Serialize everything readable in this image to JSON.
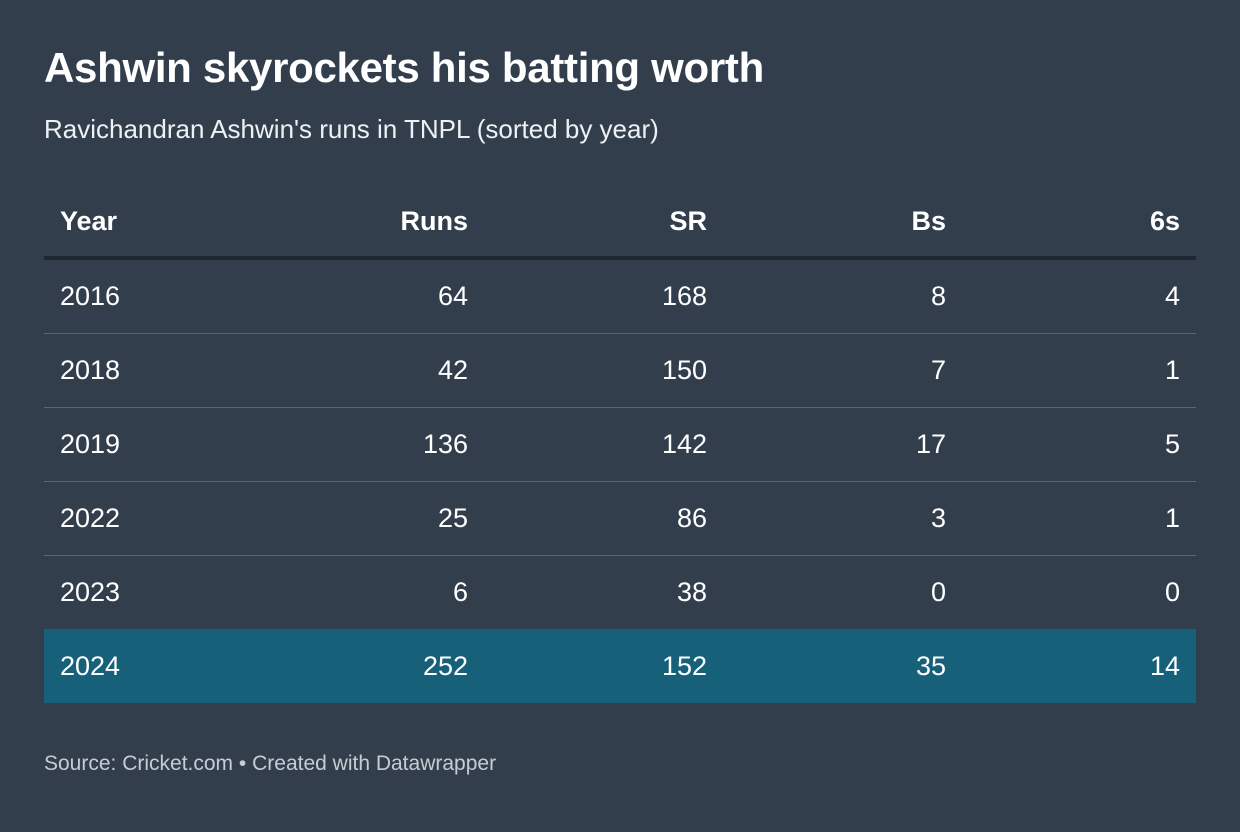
{
  "title": "Ashwin skyrockets his batting worth",
  "subtitle": "Ravichandran Ashwin's runs in TNPL (sorted by year)",
  "footer": {
    "source": "Source: Cricket.com",
    "separator": "•",
    "credit": "Created with Datawrapper"
  },
  "colors": {
    "background": "#333e4d",
    "highlight_row": "#16607a",
    "text": "#ffffff"
  },
  "chart_data": {
    "type": "table",
    "title": "Ashwin skyrockets his batting worth",
    "subtitle": "Ravichandran Ashwin's runs in TNPL (sorted by year)",
    "columns": [
      "Year",
      "Runs",
      "SR",
      "Bs",
      "6s"
    ],
    "rows": [
      [
        "2016",
        "64",
        "168",
        "8",
        "4"
      ],
      [
        "2018",
        "42",
        "150",
        "7",
        "1"
      ],
      [
        "2019",
        "136",
        "142",
        "17",
        "5"
      ],
      [
        "2022",
        "25",
        "86",
        "3",
        "1"
      ],
      [
        "2023",
        "6",
        "38",
        "0",
        "0"
      ],
      [
        "2024",
        "252",
        "152",
        "35",
        "14"
      ]
    ],
    "highlighted_row": "2024"
  }
}
